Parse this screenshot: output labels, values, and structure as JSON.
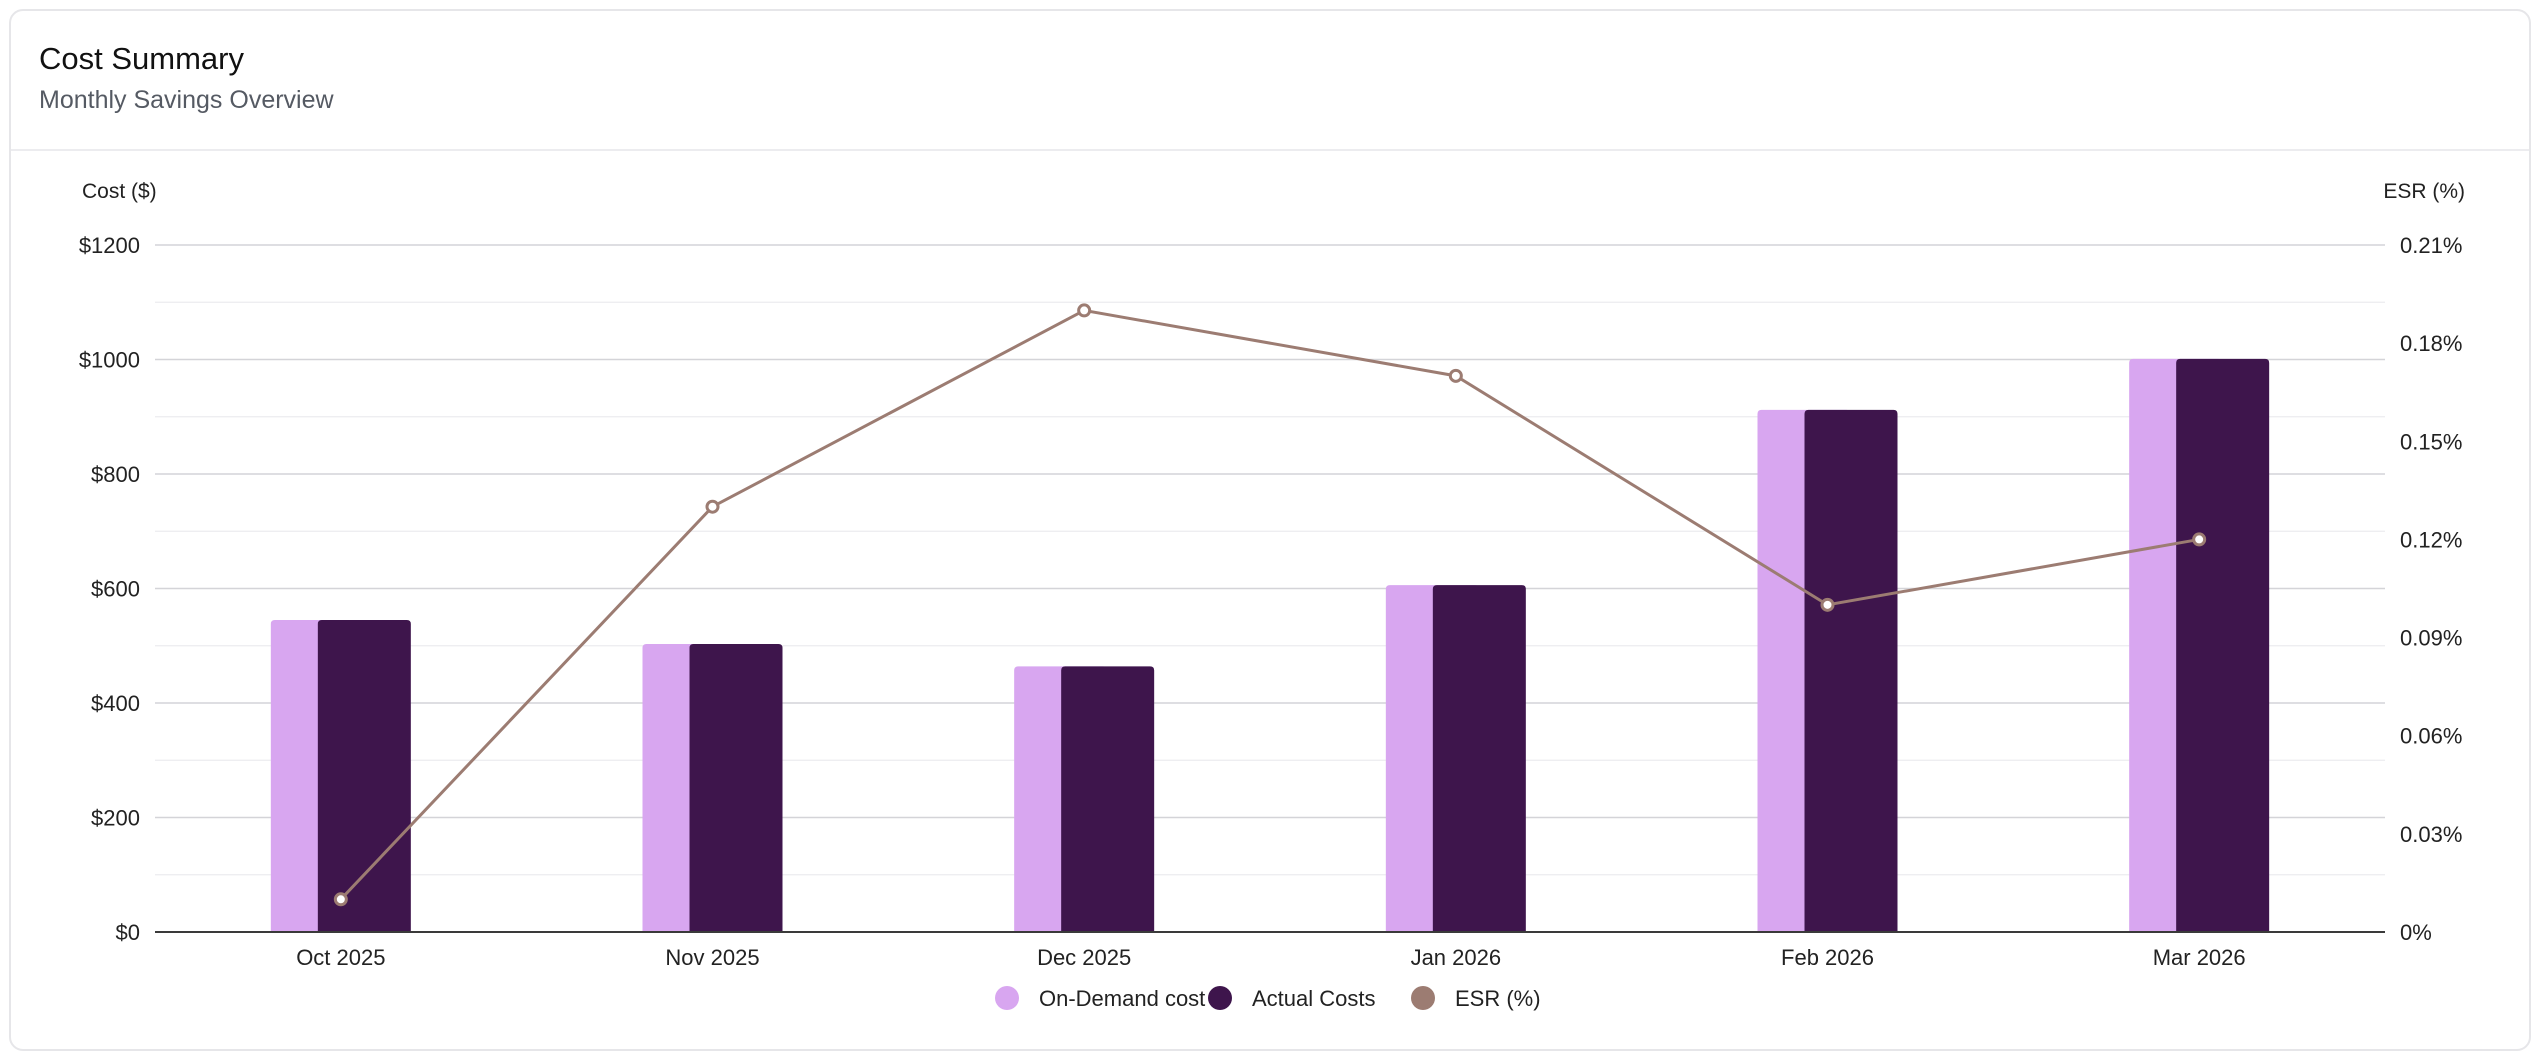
{
  "card": {
    "title": "Cost Summary",
    "subtitle": "Monthly Savings Overview"
  },
  "chart_data": {
    "type": "bar",
    "categories": [
      "Oct 2025",
      "Nov 2025",
      "Dec 2025",
      "Jan 2026",
      "Feb 2026",
      "Mar 2026"
    ],
    "series": [
      {
        "name": "On-Demand cost",
        "kind": "bar",
        "axis": "left",
        "color": "#d8a6f0",
        "values": [
          545,
          503,
          464,
          606,
          912,
          1001
        ]
      },
      {
        "name": "Actual Costs",
        "kind": "bar",
        "axis": "left",
        "color": "#3e154c",
        "values": [
          545,
          503,
          464,
          606,
          912,
          1001
        ]
      },
      {
        "name": "ESR (%)",
        "kind": "line",
        "axis": "right",
        "color": "#9c7c72",
        "values": [
          0.01,
          0.13,
          0.19,
          0.17,
          0.1,
          0.12
        ]
      }
    ],
    "ylabel": "Cost ($)",
    "y2label": "ESR (%)",
    "ylim": [
      0,
      1200
    ],
    "y2lim": [
      0,
      0.21
    ],
    "yticks": [
      "$0",
      "$200",
      "$400",
      "$600",
      "$800",
      "$1000",
      "$1200"
    ],
    "y2ticks": [
      "0%",
      "0.03%",
      "0.06%",
      "0.09%",
      "0.12%",
      "0.15%",
      "0.18%",
      "0.21%"
    ],
    "grid": true,
    "legend": "bottom-center"
  }
}
